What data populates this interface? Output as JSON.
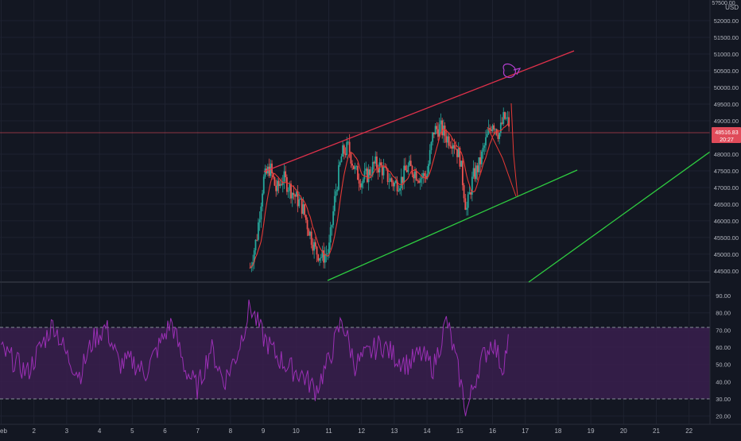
{
  "header": {
    "currency": "USD"
  },
  "colors": {
    "background": "#131722",
    "grid": "#1e2230",
    "up_candle": "#26a69a",
    "down_candle": "#ef5350",
    "moving_average": "#e53935",
    "upper_trendline": "#e0314b",
    "support_trendline": "#2ecc40",
    "rsi_line": "#9b2fb5",
    "rsi_band": "#3a1f4d",
    "axis_text": "#b2b5be",
    "price_label_bg": "#e04b5a",
    "annotation": "#b43fd0"
  },
  "price_axis": {
    "ticks": [
      "52000.00",
      "51500.00",
      "51000.00",
      "50500.00",
      "50000.00",
      "49500.00",
      "49000.00",
      "48000.00",
      "47500.00",
      "47000.00",
      "46500.00",
      "46000.00",
      "45500.00",
      "45000.00",
      "44500.00"
    ],
    "top_partial_label": "5?500.00",
    "current_price_label": "48516.83",
    "countdown_label": "20:27"
  },
  "rsi_axis": {
    "ticks": [
      "90.00",
      "80.00",
      "70.00",
      "60.00",
      "50.00",
      "40.00",
      "30.00",
      "20.00"
    ]
  },
  "time_axis": {
    "labels": [
      "eb",
      "2",
      "3",
      "4",
      "5",
      "6",
      "7",
      "8",
      "9",
      "10",
      "11",
      "12",
      "13",
      "14",
      "15",
      "16",
      "17",
      "18",
      "19",
      "20",
      "21",
      "22"
    ]
  },
  "chart_data": [
    {
      "type": "line",
      "panel": "price",
      "xlabel": "",
      "ylabel": "",
      "x_unit": "day of month",
      "ylim": [
        44200,
        52500
      ],
      "grid": true,
      "series": [
        {
          "x": [
            8.6,
            8.8,
            9.0,
            9.2,
            9.4,
            9.6,
            9.8,
            10.0,
            10.2,
            10.4,
            10.6,
            10.8,
            11.0,
            11.2,
            11.4,
            11.6,
            11.8,
            12.0,
            12.2,
            12.4,
            12.6,
            12.8,
            13.0,
            13.2,
            13.4,
            13.6,
            13.8,
            14.0,
            14.2,
            14.4,
            14.6,
            14.8,
            15.0,
            15.2,
            15.4,
            15.6,
            15.8,
            16.0,
            16.2,
            16.35,
            16.5
          ],
          "y": [
            44600,
            45500,
            47200,
            47600,
            46900,
            47300,
            47000,
            46700,
            46400,
            45700,
            45100,
            44900,
            45100,
            46800,
            48000,
            48200,
            47500,
            47200,
            47400,
            47700,
            47600,
            47300,
            47100,
            47200,
            47600,
            47500,
            47300,
            47400,
            48700,
            48800,
            48500,
            48400,
            47900,
            46300,
            47300,
            47700,
            48400,
            49000,
            48600,
            49100,
            48900
          ]
        }
      ]
    },
    {
      "type": "line",
      "panel": "rsi",
      "xlabel": "",
      "ylabel": "",
      "x_unit": "day of month",
      "ylim": [
        17,
        93
      ],
      "bands": [
        30,
        70
      ],
      "grid": true,
      "series": [
        {
          "x": [
            1.0,
            1.4,
            1.8,
            2.2,
            2.6,
            3.0,
            3.4,
            3.8,
            4.2,
            4.6,
            5.0,
            5.4,
            5.8,
            6.2,
            6.6,
            7.0,
            7.4,
            7.8,
            8.2,
            8.6,
            9.0,
            9.4,
            9.8,
            10.2,
            10.6,
            11.0,
            11.4,
            11.8,
            12.2,
            12.6,
            13.0,
            13.4,
            13.8,
            14.2,
            14.6,
            15.0,
            15.2,
            15.6,
            16.0,
            16.3,
            16.5
          ],
          "y": [
            58,
            52,
            45,
            60,
            74,
            55,
            44,
            64,
            72,
            50,
            52,
            45,
            60,
            75,
            48,
            36,
            60,
            40,
            56,
            84,
            66,
            55,
            48,
            44,
            35,
            52,
            76,
            50,
            56,
            62,
            55,
            50,
            56,
            48,
            76,
            42,
            22,
            50,
            64,
            48,
            65
          ]
        }
      ]
    }
  ]
}
